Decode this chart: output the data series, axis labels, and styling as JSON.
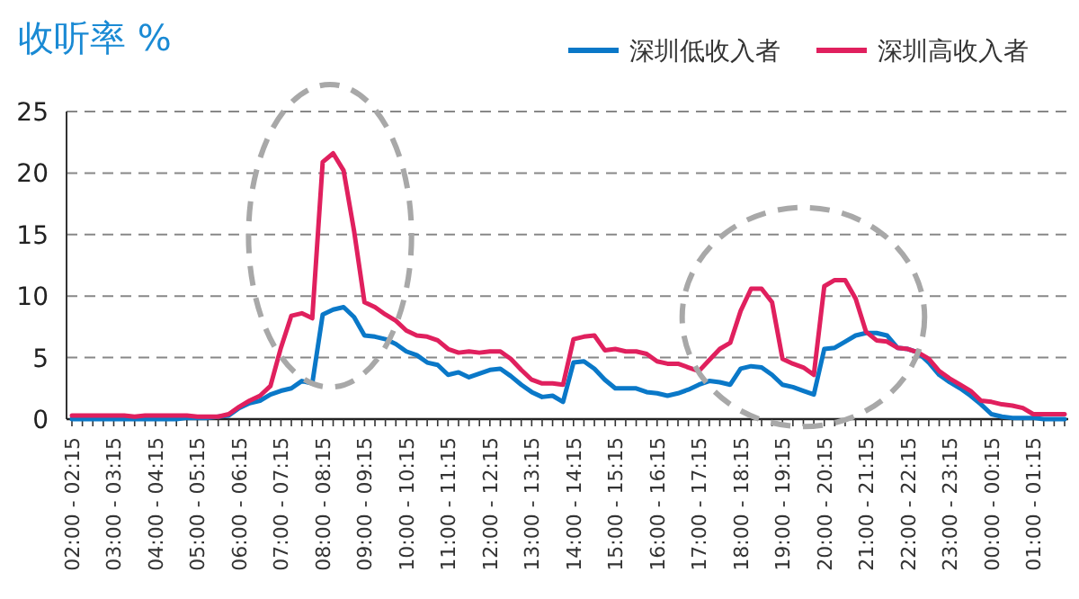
{
  "chart_data": {
    "type": "line",
    "title": "收听率 %",
    "legend": "top right",
    "grid": "y",
    "ylim": [
      0,
      25
    ],
    "yticks": [
      0,
      5,
      10,
      15,
      20,
      25
    ],
    "categories": [
      "02:00 - 02:15",
      null,
      null,
      null,
      "03:00 - 03:15",
      null,
      null,
      null,
      "04:00 - 04:15",
      null,
      null,
      null,
      "05:00 - 05:15",
      null,
      null,
      null,
      "06:00 - 06:15",
      null,
      null,
      null,
      "07:00 - 07:15",
      null,
      null,
      null,
      "08:00 - 08:15",
      null,
      null,
      null,
      "09:00 - 09:15",
      null,
      null,
      null,
      "10:00 - 10:15",
      null,
      null,
      null,
      "11:00 - 11:15",
      null,
      null,
      null,
      "12:00 - 12:15",
      null,
      null,
      null,
      "13:00 - 13:15",
      null,
      null,
      null,
      "14:00 - 14:15",
      null,
      null,
      null,
      "15:00 - 15:15",
      null,
      null,
      null,
      "16:00 - 16:15",
      null,
      null,
      null,
      "17:00 - 17:15",
      null,
      null,
      null,
      "18:00 - 18:15",
      null,
      null,
      null,
      "19:00 - 19:15",
      null,
      null,
      null,
      "20:00 - 20:15",
      null,
      null,
      null,
      "21:00 - 21:15",
      null,
      null,
      null,
      "22:00 - 22:15",
      null,
      null,
      null,
      "23:00 - 23:15",
      null,
      null,
      null,
      "00:00 - 00:15",
      null,
      null,
      null,
      "01:00 - 01:15",
      null,
      null,
      null
    ],
    "series": [
      {
        "name": "深圳低收入者",
        "color": "#0a78c8",
        "values": [
          0,
          0,
          0,
          0,
          0,
          0,
          0,
          0,
          0,
          0,
          0,
          0.1,
          0.1,
          0.1,
          0.2,
          0.3,
          0.9,
          1.3,
          1.5,
          2.0,
          2.3,
          2.5,
          3.1,
          2.9,
          8.5,
          8.9,
          9.1,
          8.3,
          6.8,
          6.7,
          6.5,
          6.1,
          5.5,
          5.2,
          4.6,
          4.4,
          3.6,
          3.8,
          3.4,
          3.7,
          4.0,
          4.1,
          3.5,
          2.8,
          2.2,
          1.8,
          1.9,
          1.4,
          4.6,
          4.7,
          4.1,
          3.2,
          2.5,
          2.5,
          2.5,
          2.2,
          2.1,
          1.9,
          2.1,
          2.4,
          2.8,
          3.1,
          3.0,
          2.8,
          4.1,
          4.3,
          4.2,
          3.6,
          2.8,
          2.6,
          2.3,
          2.0,
          5.7,
          5.8,
          6.3,
          6.8,
          7.0,
          7.0,
          6.8,
          5.8,
          5.7,
          5.4,
          4.6,
          3.6,
          3.0,
          2.5,
          1.9,
          1.2,
          0.4,
          0.2,
          0.1,
          0.1,
          0.1,
          0,
          0,
          0
        ]
      },
      {
        "name": "深圳高收入者",
        "color": "#e0205e",
        "values": [
          0.3,
          0.3,
          0.3,
          0.3,
          0.3,
          0.3,
          0.2,
          0.3,
          0.3,
          0.3,
          0.3,
          0.3,
          0.2,
          0.2,
          0.2,
          0.4,
          1.0,
          1.5,
          1.9,
          2.7,
          5.8,
          8.4,
          8.6,
          8.2,
          20.9,
          21.6,
          20.2,
          15.3,
          9.5,
          9.1,
          8.5,
          8.0,
          7.2,
          6.8,
          6.7,
          6.4,
          5.7,
          5.4,
          5.5,
          5.4,
          5.5,
          5.5,
          4.9,
          4.0,
          3.2,
          2.9,
          2.9,
          2.8,
          6.5,
          6.7,
          6.8,
          5.6,
          5.7,
          5.5,
          5.5,
          5.3,
          4.7,
          4.5,
          4.5,
          4.2,
          3.9,
          4.8,
          5.7,
          6.2,
          8.8,
          10.6,
          10.6,
          9.5,
          4.9,
          4.5,
          4.2,
          3.6,
          10.8,
          11.3,
          11.3,
          9.8,
          7.1,
          6.4,
          6.3,
          5.8,
          5.7,
          5.4,
          4.9,
          3.9,
          3.3,
          2.8,
          2.3,
          1.5,
          1.4,
          1.2,
          1.1,
          0.9,
          0.4,
          0.4,
          0.4,
          0.4
        ]
      }
    ]
  }
}
